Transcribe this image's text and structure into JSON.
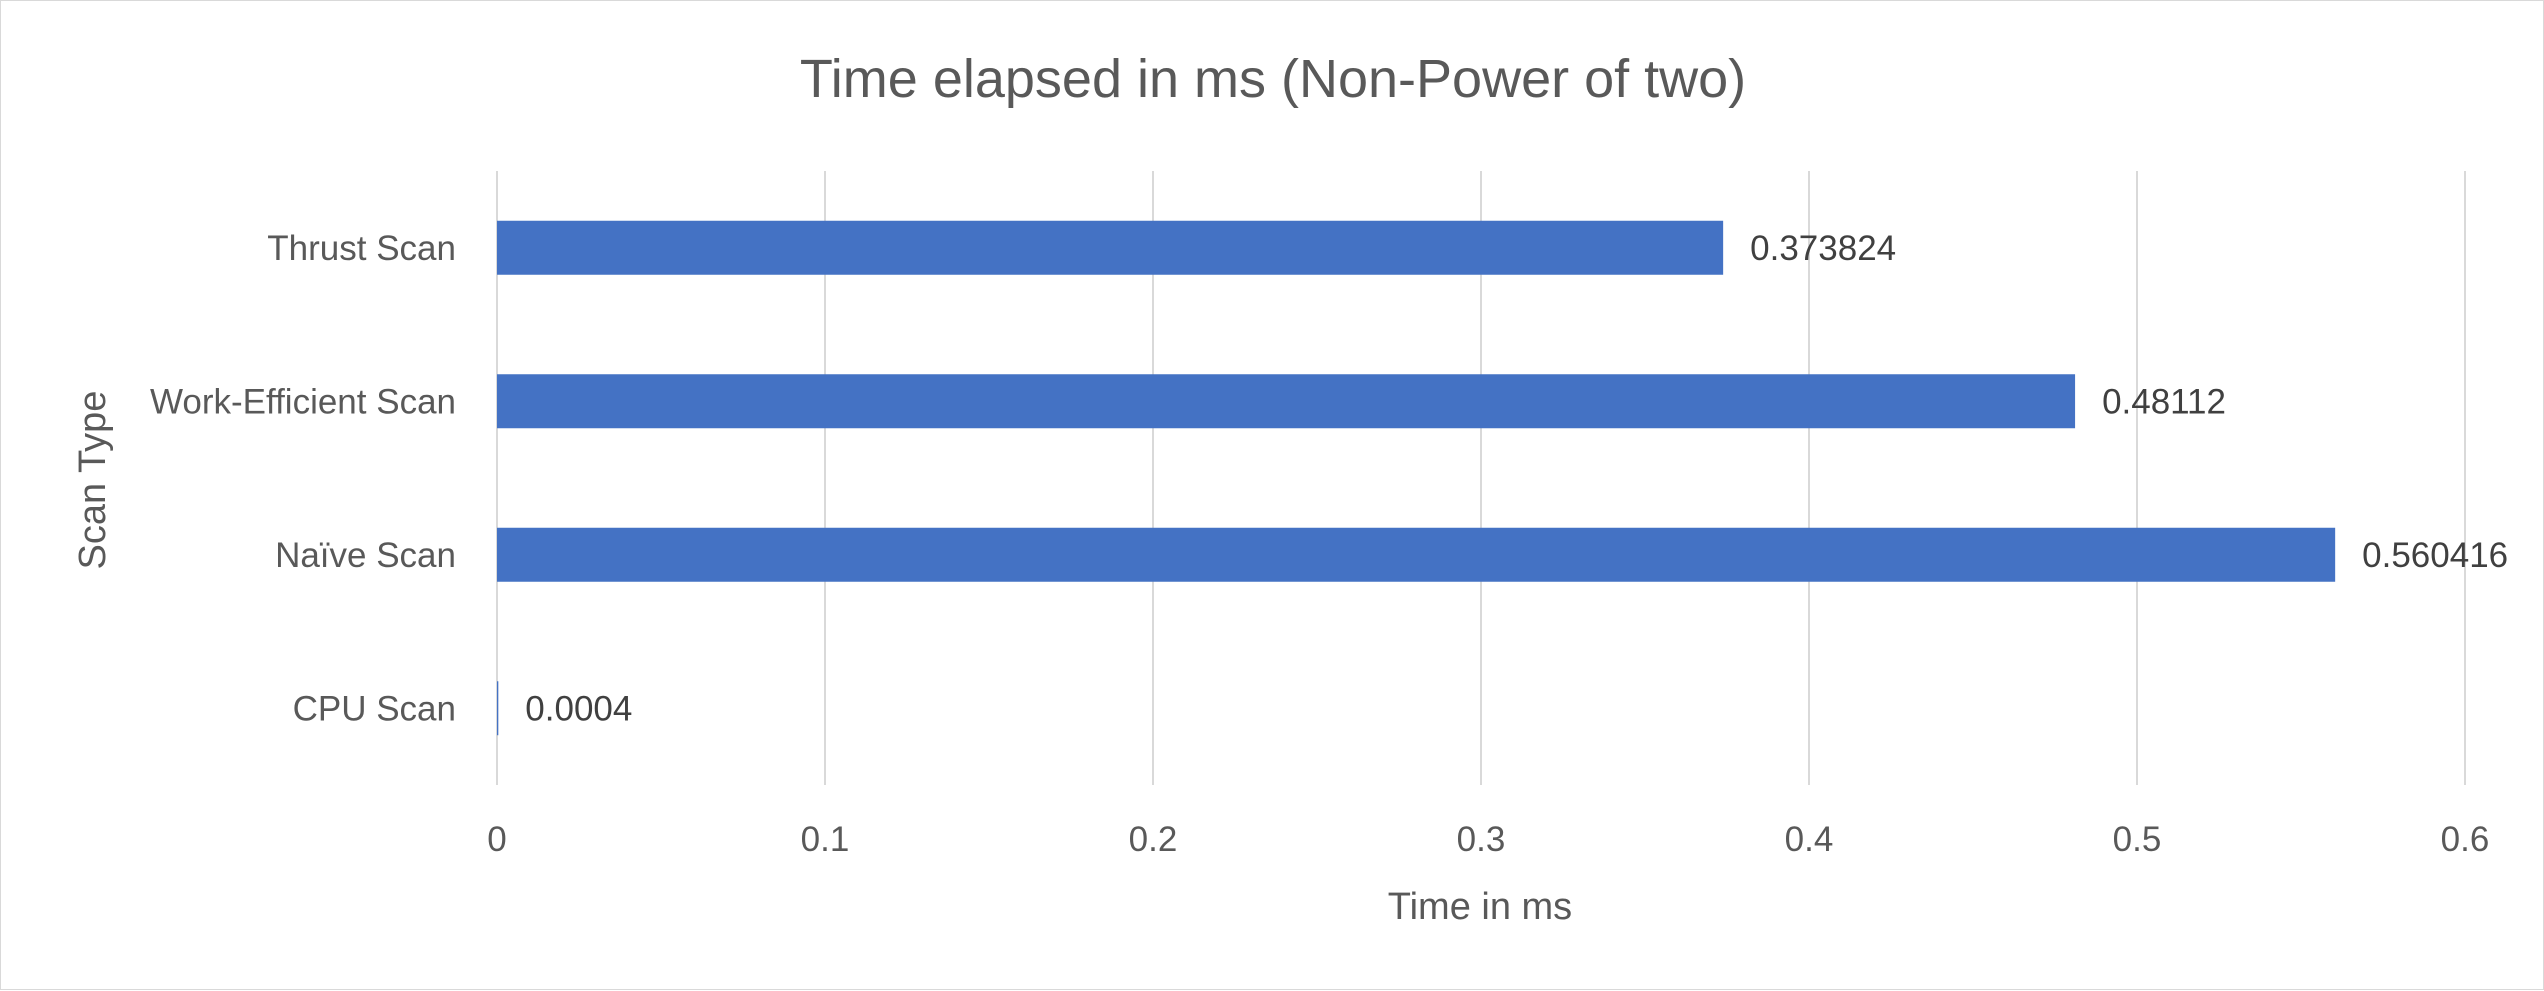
{
  "chart_data": {
    "type": "bar",
    "orientation": "horizontal",
    "title": "Time elapsed in ms (Non-Power of two)",
    "xlabel": "Time in ms",
    "ylabel": "Scan Type",
    "categories": [
      "Thrust Scan",
      "Work-Efficient Scan",
      "Naïve Scan",
      "CPU Scan"
    ],
    "values": [
      0.373824,
      0.48112,
      0.560416,
      0.0004
    ],
    "data_labels": [
      "0.373824",
      "0.48112",
      "0.560416",
      "0.0004"
    ],
    "xlim": [
      0,
      0.6
    ],
    "xticks": [
      0,
      0.1,
      0.2,
      0.3,
      0.4,
      0.5,
      0.6
    ],
    "xtick_labels": [
      "0",
      "0.1",
      "0.2",
      "0.3",
      "0.4",
      "0.5",
      "0.6"
    ],
    "grid": "vertical",
    "legend": "none",
    "bar_color": "#4472C4",
    "grid_color": "#d9d9d9"
  }
}
